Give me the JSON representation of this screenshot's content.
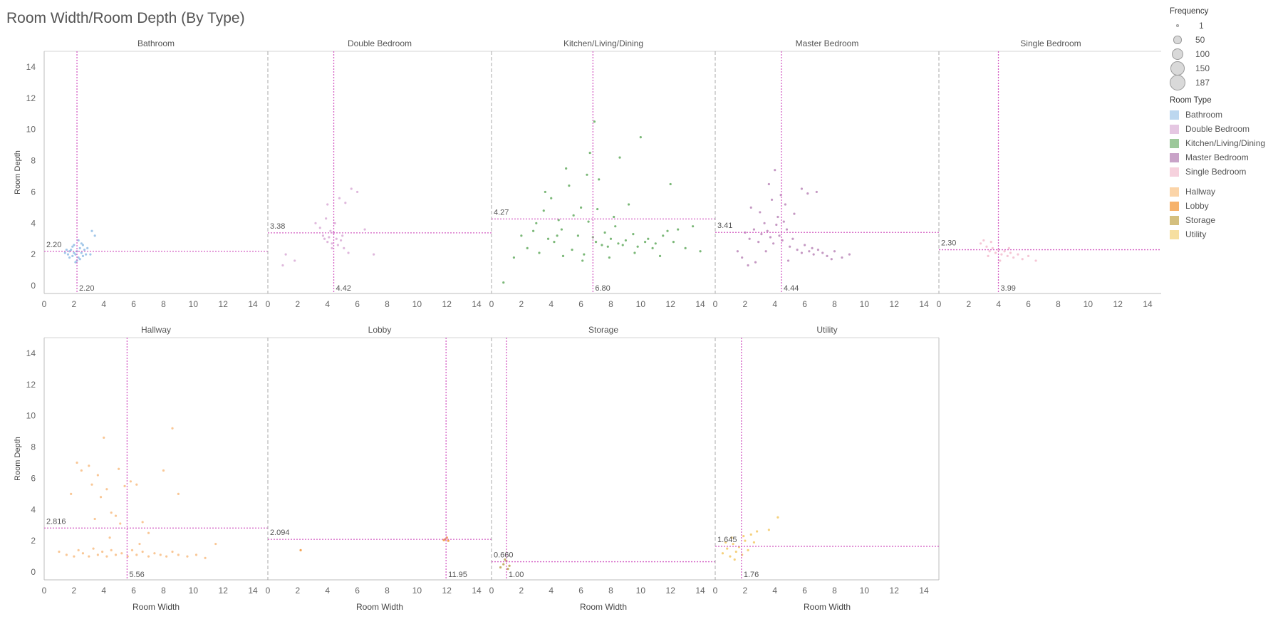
{
  "title": "Room Width/Room Depth (By Type)",
  "size_legend": {
    "title": "Frequency",
    "items": [
      {
        "label": "1",
        "value": 1
      },
      {
        "label": "50",
        "value": 50
      },
      {
        "label": "100",
        "value": 100
      },
      {
        "label": "150",
        "value": 150
      },
      {
        "label": "187",
        "value": 187
      }
    ]
  },
  "color_legend": {
    "title": "Room Type",
    "groups": [
      [
        {
          "label": "Bathroom",
          "color": "#bcd7ef"
        },
        {
          "label": "Double Bedroom",
          "color": "#e5c7e2"
        },
        {
          "label": "Kitchen/Living/Dining",
          "color": "#9cc89a"
        },
        {
          "label": "Master Bedroom",
          "color": "#c9a3c8"
        },
        {
          "label": "Single Bedroom",
          "color": "#f6d1dd"
        }
      ],
      [
        {
          "label": "Hallway",
          "color": "#fbd4a8"
        },
        {
          "label": "Lobby",
          "color": "#f6b26b"
        },
        {
          "label": "Storage",
          "color": "#d4bf7e"
        },
        {
          "label": "Utility",
          "color": "#f6dfa0"
        }
      ]
    ]
  },
  "chart_data": {
    "type": "scatter",
    "title": "Room Width/Room Depth (By Type)",
    "xlabel": "Room Width",
    "ylabel": "Room Depth",
    "xlim": [
      0,
      15
    ],
    "ylim": [
      -0.5,
      15
    ],
    "xticks": [
      0,
      2,
      4,
      6,
      8,
      10,
      12,
      14
    ],
    "yticks": [
      0,
      2,
      4,
      6,
      8,
      10,
      12,
      14
    ],
    "reference_line_color": "#d45fc4",
    "panels": [
      {
        "name": "Bathroom",
        "color": "#8bb9e3",
        "ref_x": 2.2,
        "ref_x_label": "2.20",
        "ref_y": 2.2,
        "ref_y_label": "2.20",
        "points": [
          [
            1.4,
            2.1
          ],
          [
            1.6,
            2.0
          ],
          [
            1.7,
            2.2
          ],
          [
            1.8,
            2.3
          ],
          [
            1.9,
            1.9
          ],
          [
            2.0,
            2.1
          ],
          [
            2.1,
            2.0
          ],
          [
            2.2,
            2.2
          ],
          [
            2.3,
            1.8
          ],
          [
            2.4,
            2.4
          ],
          [
            2.5,
            2.1
          ],
          [
            2.6,
            1.9
          ],
          [
            2.7,
            2.3
          ],
          [
            1.9,
            2.5
          ],
          [
            2.2,
            1.6
          ],
          [
            2.4,
            1.7
          ],
          [
            2.6,
            2.6
          ],
          [
            1.7,
            1.8
          ],
          [
            2.0,
            2.6
          ],
          [
            2.8,
            2.0
          ],
          [
            2.3,
            2.9
          ],
          [
            2.5,
            2.7
          ],
          [
            2.1,
            1.5
          ],
          [
            3.2,
            3.5
          ],
          [
            3.4,
            3.2
          ],
          [
            2.9,
            2.4
          ],
          [
            3.1,
            2.0
          ],
          [
            1.5,
            2.3
          ]
        ]
      },
      {
        "name": "Double Bedroom",
        "color": "#d7a6d3",
        "ref_x": 4.42,
        "ref_x_label": "4.42",
        "ref_y": 3.38,
        "ref_y_label": "3.38",
        "points": [
          [
            3.2,
            4.0
          ],
          [
            3.5,
            3.7
          ],
          [
            3.7,
            3.2
          ],
          [
            3.8,
            3.0
          ],
          [
            4.0,
            2.8
          ],
          [
            4.1,
            3.1
          ],
          [
            4.3,
            2.7
          ],
          [
            4.4,
            3.4
          ],
          [
            4.6,
            3.0
          ],
          [
            4.7,
            2.6
          ],
          [
            4.9,
            2.9
          ],
          [
            5.0,
            3.2
          ],
          [
            4.2,
            3.5
          ],
          [
            3.9,
            4.3
          ],
          [
            4.5,
            4.0
          ],
          [
            4.8,
            5.6
          ],
          [
            5.2,
            5.3
          ],
          [
            5.6,
            6.2
          ],
          [
            6.0,
            6.0
          ],
          [
            6.5,
            3.6
          ],
          [
            7.1,
            2.0
          ],
          [
            1.0,
            1.3
          ],
          [
            1.2,
            2.0
          ],
          [
            1.8,
            1.6
          ],
          [
            4.0,
            5.2
          ],
          [
            5.4,
            2.1
          ],
          [
            5.1,
            2.4
          ],
          [
            4.3,
            2.4
          ]
        ]
      },
      {
        "name": "Kitchen/Living/Dining",
        "color": "#5aa656",
        "ref_x": 6.8,
        "ref_x_label": "6.80",
        "ref_y": 4.27,
        "ref_y_label": "4.27",
        "points": [
          [
            0.8,
            0.2
          ],
          [
            1.5,
            1.8
          ],
          [
            2.0,
            3.2
          ],
          [
            2.4,
            2.4
          ],
          [
            2.8,
            3.5
          ],
          [
            3.0,
            4.0
          ],
          [
            3.2,
            2.1
          ],
          [
            3.5,
            4.8
          ],
          [
            3.8,
            3.0
          ],
          [
            4.0,
            5.6
          ],
          [
            4.2,
            2.8
          ],
          [
            4.5,
            4.2
          ],
          [
            4.7,
            3.6
          ],
          [
            5.0,
            7.5
          ],
          [
            5.2,
            6.4
          ],
          [
            5.5,
            4.5
          ],
          [
            5.8,
            3.2
          ],
          [
            6.0,
            5.0
          ],
          [
            6.2,
            2.0
          ],
          [
            6.5,
            4.1
          ],
          [
            6.6,
            8.5
          ],
          [
            6.8,
            3.1
          ],
          [
            7.0,
            2.8
          ],
          [
            7.2,
            6.8
          ],
          [
            7.4,
            2.6
          ],
          [
            7.6,
            3.4
          ],
          [
            7.8,
            2.5
          ],
          [
            8.0,
            3.0
          ],
          [
            8.2,
            4.4
          ],
          [
            8.5,
            2.7
          ],
          [
            8.8,
            2.6
          ],
          [
            9.0,
            2.9
          ],
          [
            9.2,
            5.2
          ],
          [
            9.5,
            3.3
          ],
          [
            9.8,
            2.5
          ],
          [
            10.0,
            9.5
          ],
          [
            10.3,
            2.8
          ],
          [
            10.5,
            3.0
          ],
          [
            10.8,
            2.4
          ],
          [
            11.0,
            2.7
          ],
          [
            11.5,
            3.2
          ],
          [
            11.8,
            3.5
          ],
          [
            12.0,
            6.5
          ],
          [
            12.2,
            2.8
          ],
          [
            12.5,
            3.6
          ],
          [
            13.0,
            2.4
          ],
          [
            13.5,
            3.8
          ],
          [
            14.0,
            2.2
          ],
          [
            6.9,
            10.5
          ],
          [
            6.4,
            7.1
          ],
          [
            8.6,
            8.2
          ],
          [
            9.6,
            2.1
          ],
          [
            5.4,
            2.3
          ],
          [
            4.8,
            1.9
          ],
          [
            3.6,
            6.0
          ],
          [
            7.9,
            1.8
          ],
          [
            11.3,
            1.9
          ],
          [
            6.1,
            1.6
          ],
          [
            4.4,
            3.2
          ],
          [
            7.1,
            4.9
          ],
          [
            8.3,
            3.8
          ]
        ]
      },
      {
        "name": "Master Bedroom",
        "color": "#b77fb4",
        "ref_x": 4.44,
        "ref_x_label": "4.44",
        "ref_y": 3.41,
        "ref_y_label": "3.41",
        "points": [
          [
            1.5,
            2.2
          ],
          [
            2.0,
            3.4
          ],
          [
            2.3,
            3.0
          ],
          [
            2.6,
            3.6
          ],
          [
            2.9,
            2.8
          ],
          [
            3.1,
            3.3
          ],
          [
            3.3,
            4.0
          ],
          [
            3.5,
            3.5
          ],
          [
            3.7,
            3.1
          ],
          [
            3.9,
            2.7
          ],
          [
            4.1,
            3.9
          ],
          [
            4.2,
            4.4
          ],
          [
            4.3,
            3.2
          ],
          [
            4.5,
            2.9
          ],
          [
            4.6,
            4.1
          ],
          [
            4.8,
            3.6
          ],
          [
            5.0,
            2.5
          ],
          [
            5.2,
            3.0
          ],
          [
            5.5,
            2.3
          ],
          [
            5.8,
            2.1
          ],
          [
            6.0,
            2.6
          ],
          [
            6.3,
            2.2
          ],
          [
            6.6,
            2.0
          ],
          [
            6.9,
            2.3
          ],
          [
            7.2,
            2.1
          ],
          [
            7.5,
            1.9
          ],
          [
            8.0,
            2.2
          ],
          [
            8.5,
            1.8
          ],
          [
            9.0,
            2.0
          ],
          [
            3.6,
            6.5
          ],
          [
            4.0,
            7.4
          ],
          [
            4.4,
            5.8
          ],
          [
            5.8,
            6.2
          ],
          [
            6.2,
            5.9
          ],
          [
            6.8,
            6.0
          ],
          [
            2.4,
            5.0
          ],
          [
            3.0,
            4.7
          ],
          [
            1.8,
            1.8
          ],
          [
            2.2,
            1.3
          ],
          [
            2.7,
            1.5
          ],
          [
            3.4,
            2.2
          ],
          [
            4.7,
            5.2
          ],
          [
            5.3,
            4.6
          ],
          [
            3.8,
            5.5
          ],
          [
            4.9,
            1.6
          ],
          [
            6.5,
            2.4
          ],
          [
            7.8,
            1.7
          ]
        ]
      },
      {
        "name": "Single Bedroom",
        "color": "#f2b8cb",
        "ref_x": 3.99,
        "ref_x_label": "3.99",
        "ref_y": 2.3,
        "ref_y_label": "2.30",
        "points": [
          [
            2.8,
            2.7
          ],
          [
            3.0,
            2.9
          ],
          [
            3.2,
            2.5
          ],
          [
            3.4,
            2.2
          ],
          [
            3.6,
            2.4
          ],
          [
            3.8,
            2.1
          ],
          [
            4.0,
            2.3
          ],
          [
            4.2,
            2.0
          ],
          [
            4.4,
            2.2
          ],
          [
            4.6,
            1.9
          ],
          [
            4.8,
            2.1
          ],
          [
            5.0,
            1.8
          ],
          [
            5.3,
            2.0
          ],
          [
            5.6,
            1.7
          ],
          [
            6.0,
            1.9
          ],
          [
            6.5,
            1.6
          ],
          [
            3.5,
            2.8
          ],
          [
            4.1,
            1.6
          ],
          [
            3.3,
            1.9
          ],
          [
            4.7,
            2.4
          ]
        ]
      },
      {
        "name": "Hallway",
        "color": "#f8b97c",
        "ref_x": 5.56,
        "ref_x_label": "5.56",
        "ref_y": 2.816,
        "ref_y_label": "2.816",
        "points": [
          [
            1.0,
            1.3
          ],
          [
            1.5,
            1.1
          ],
          [
            2.0,
            1.0
          ],
          [
            2.3,
            1.4
          ],
          [
            2.6,
            1.2
          ],
          [
            3.0,
            1.0
          ],
          [
            3.3,
            1.5
          ],
          [
            3.6,
            1.1
          ],
          [
            3.9,
            1.3
          ],
          [
            4.2,
            1.0
          ],
          [
            4.5,
            1.4
          ],
          [
            4.8,
            1.1
          ],
          [
            5.2,
            1.2
          ],
          [
            5.6,
            1.0
          ],
          [
            5.9,
            1.4
          ],
          [
            6.2,
            1.1
          ],
          [
            6.6,
            1.3
          ],
          [
            7.0,
            1.0
          ],
          [
            7.4,
            1.2
          ],
          [
            7.8,
            1.1
          ],
          [
            8.2,
            1.0
          ],
          [
            8.6,
            1.3
          ],
          [
            9.0,
            1.1
          ],
          [
            9.6,
            1.0
          ],
          [
            10.2,
            1.1
          ],
          [
            10.8,
            0.9
          ],
          [
            11.5,
            1.8
          ],
          [
            1.8,
            5.0
          ],
          [
            2.2,
            7.0
          ],
          [
            2.5,
            6.5
          ],
          [
            3.0,
            6.8
          ],
          [
            3.2,
            5.6
          ],
          [
            3.6,
            6.2
          ],
          [
            3.8,
            4.8
          ],
          [
            4.0,
            8.6
          ],
          [
            4.2,
            5.3
          ],
          [
            4.5,
            3.8
          ],
          [
            4.8,
            3.6
          ],
          [
            5.0,
            6.6
          ],
          [
            5.4,
            5.5
          ],
          [
            5.8,
            5.8
          ],
          [
            6.2,
            5.6
          ],
          [
            6.6,
            3.2
          ],
          [
            7.0,
            2.5
          ],
          [
            8.0,
            6.5
          ],
          [
            8.6,
            9.2
          ],
          [
            9.0,
            5.0
          ],
          [
            3.4,
            3.4
          ],
          [
            4.4,
            2.2
          ],
          [
            6.4,
            1.8
          ],
          [
            5.1,
            3.1
          ]
        ]
      },
      {
        "name": "Lobby",
        "color": "#f08a24",
        "ref_x": 11.95,
        "ref_x_label": "11.95",
        "ref_y": 2.094,
        "ref_y_label": "2.094",
        "points": [
          [
            2.2,
            1.4
          ],
          [
            11.9,
            2.1
          ],
          [
            12.0,
            2.2
          ],
          [
            12.1,
            2.0
          ],
          [
            11.8,
            2.05
          ]
        ]
      },
      {
        "name": "Storage",
        "color": "#b79b48",
        "ref_x": 1.0,
        "ref_x_label": "1.00",
        "ref_y": 0.66,
        "ref_y_label": "0.660",
        "points": [
          [
            0.6,
            0.3
          ],
          [
            0.8,
            0.5
          ],
          [
            1.0,
            0.7
          ],
          [
            1.2,
            0.4
          ],
          [
            0.9,
            0.8
          ],
          [
            1.1,
            0.2
          ]
        ]
      },
      {
        "name": "Utility",
        "color": "#f3c55c",
        "ref_x": 1.76,
        "ref_x_label": "1.76",
        "ref_y": 1.645,
        "ref_y_label": "1.645",
        "points": [
          [
            0.5,
            1.2
          ],
          [
            0.8,
            1.5
          ],
          [
            1.0,
            1.0
          ],
          [
            1.2,
            1.8
          ],
          [
            1.4,
            1.3
          ],
          [
            1.6,
            1.6
          ],
          [
            1.8,
            1.1
          ],
          [
            2.0,
            2.0
          ],
          [
            2.2,
            1.4
          ],
          [
            2.4,
            2.4
          ],
          [
            2.6,
            1.9
          ],
          [
            1.3,
            0.8
          ],
          [
            1.1,
            2.2
          ],
          [
            2.8,
            2.6
          ],
          [
            3.6,
            2.7
          ],
          [
            4.2,
            3.5
          ],
          [
            0.7,
            1.9
          ],
          [
            1.9,
            2.3
          ]
        ]
      }
    ]
  }
}
